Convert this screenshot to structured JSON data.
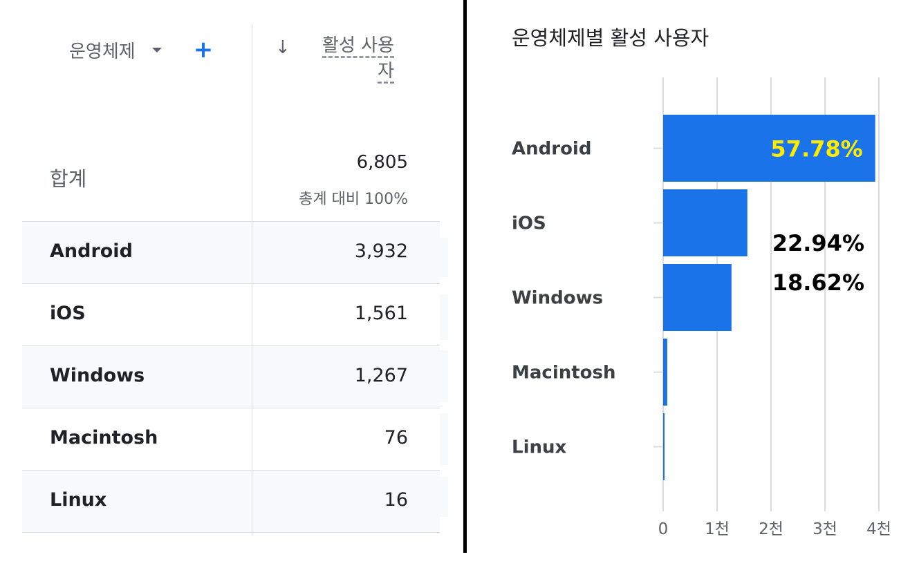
{
  "table": {
    "dimension_label": "운영체제",
    "metric_label": "활성 사용자",
    "total_label": "합계",
    "total_value": "6,805",
    "total_pct": "총계 대비 100%",
    "rows": [
      {
        "name": "Android",
        "value": "3,932"
      },
      {
        "name": "iOS",
        "value": "1,561"
      },
      {
        "name": "Windows",
        "value": "1,267"
      },
      {
        "name": "Macintosh",
        "value": "76"
      },
      {
        "name": "Linux",
        "value": "16"
      }
    ]
  },
  "colors": {
    "bar": "#1a73e8",
    "highlight_label": "#ffeb00",
    "plain_label": "#000000",
    "grid": "#dadce0"
  },
  "chart_data": {
    "type": "bar",
    "orientation": "horizontal",
    "title": "운영체제별 활성 사용자",
    "categories": [
      "Android",
      "iOS",
      "Windows",
      "Macintosh",
      "Linux"
    ],
    "values": [
      3932,
      1561,
      1267,
      76,
      16
    ],
    "xlim": [
      0,
      4000
    ],
    "x_ticks": [
      0,
      1000,
      2000,
      3000,
      4000
    ],
    "x_tick_labels": [
      "0",
      "1천",
      "2천",
      "3천",
      "4천"
    ],
    "grid": true,
    "annotations": [
      {
        "category": "Android",
        "text": "57.78%",
        "placement": "inside-bar"
      },
      {
        "category": "iOS",
        "text": "22.94%",
        "placement": "outside-bar"
      },
      {
        "category": "Windows",
        "text": "18.62%",
        "placement": "outside-bar"
      }
    ]
  }
}
